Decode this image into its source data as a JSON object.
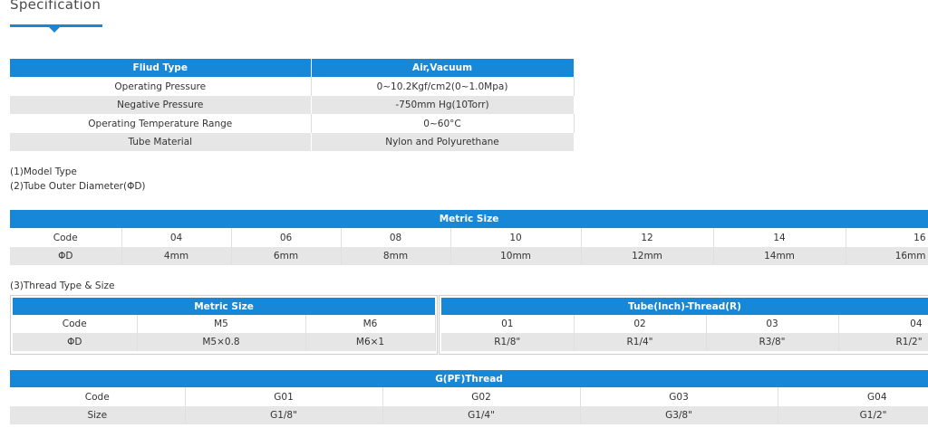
{
  "header": {
    "title": "Specification"
  },
  "spec_table": {
    "headers": [
      "Fliud Type",
      "Air,Vacuum"
    ],
    "rows": [
      [
        "Operating Pressure",
        "0~10.2Kgf/cm2(0~1.0Mpa)"
      ],
      [
        "Negative Pressure",
        "-750mm Hg(10Torr)"
      ],
      [
        "Operating Temperature Range",
        "0~60°C"
      ],
      [
        "Tube Material",
        "Nylon and Polyurethane"
      ]
    ]
  },
  "notes": {
    "model_type": "(1)Model Type",
    "tube_od": "(2)Tube Outer Diameter(ΦD)",
    "thread": "(3)Thread Type & Size"
  },
  "metric_size_table": {
    "title": "Metric Size",
    "rows": [
      [
        "Code",
        "04",
        "06",
        "08",
        "10",
        "12",
        "14",
        "16"
      ],
      [
        "ΦD",
        "4mm",
        "6mm",
        "8mm",
        "10mm",
        "12mm",
        "14mm",
        "16mm"
      ]
    ]
  },
  "thread_metric_table": {
    "title": "Metric Size",
    "rows": [
      [
        "Code",
        "M5",
        "M6"
      ],
      [
        "ΦD",
        "M5×0.8",
        "M6×1"
      ]
    ]
  },
  "thread_inch_table": {
    "title": "Tube(Inch)-Thread(R)",
    "rows": [
      [
        "01",
        "02",
        "03",
        "04"
      ],
      [
        "R1/8\"",
        "R1/4\"",
        "R3/8\"",
        "R1/2\""
      ]
    ]
  },
  "pf_thread_table": {
    "title": "G(PF)Thread",
    "rows": [
      [
        "Code",
        "G01",
        "G02",
        "G03",
        "G04"
      ],
      [
        "Size",
        "G1/8\"",
        "G1/4\"",
        "G3/8\"",
        "G1/2\""
      ]
    ]
  }
}
